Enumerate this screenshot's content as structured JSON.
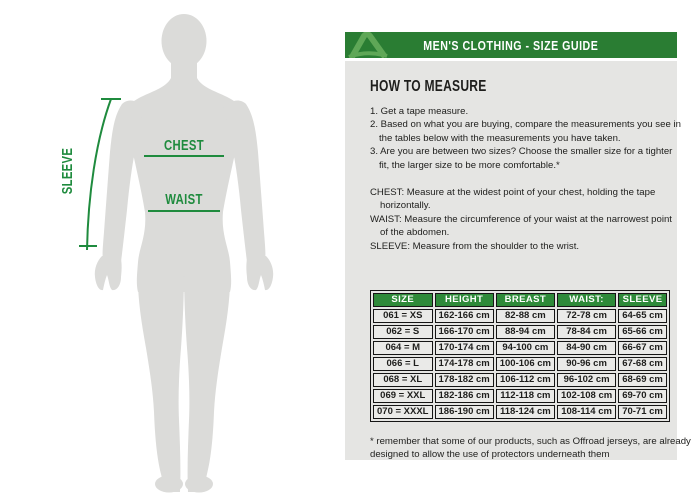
{
  "header": {
    "title": "MEN'S CLOTHING - SIZE GUIDE",
    "logo_icon": "acerbis-logo"
  },
  "diagram": {
    "chest_label": "CHEST",
    "waist_label": "WAIST",
    "sleeve_label": "SLEEVE"
  },
  "how_to": {
    "title": "HOW TO MEASURE",
    "steps": [
      {
        "lines": [
          "1. Get a tape measure."
        ]
      },
      {
        "lines": [
          "2. Based on what you are buying, compare the measurements you see in",
          "the tables below with the measurements you have taken."
        ]
      },
      {
        "lines": [
          "3. Are you are between two sizes? Choose the smaller size for a tighter",
          "fit, the larger size to be more comfortable.*"
        ]
      }
    ],
    "definitions": [
      {
        "lines": [
          "CHEST: Measure at the widest point of your chest, holding the tape",
          "horizontally."
        ]
      },
      {
        "lines": [
          "WAIST: Measure the circumference of your waist at the narrowest point",
          "of the abdomen."
        ]
      },
      {
        "lines": [
          "SLEEVE: Measure from the shoulder to the wrist."
        ]
      }
    ]
  },
  "size_table": {
    "columns": [
      "SIZE",
      "HEIGHT",
      "BREAST",
      "WAIST:",
      "SLEEVE"
    ],
    "rows": [
      [
        "061 = XS",
        "162-166 cm",
        "82-88 cm",
        "72-78 cm",
        "64-65 cm"
      ],
      [
        "062 = S",
        "166-170 cm",
        "88-94 cm",
        "78-84 cm",
        "65-66 cm"
      ],
      [
        "064 = M",
        "170-174 cm",
        "94-100 cm",
        "84-90 cm",
        "66-67 cm"
      ],
      [
        "066 = L",
        "174-178 cm",
        "100-106 cm",
        "90-96 cm",
        "67-68 cm"
      ],
      [
        "068 = XL",
        "178-182 cm",
        "106-112 cm",
        "96-102 cm",
        "68-69 cm"
      ],
      [
        "069 = XXL",
        "182-186 cm",
        "112-118 cm",
        "102-108 cm",
        "69-70 cm"
      ],
      [
        "070 = XXXL",
        "186-190 cm",
        "118-124 cm",
        "108-114 cm",
        "70-71 cm"
      ]
    ],
    "footnote_lines": [
      "* remember that some of our products, such as Offroad jerseys, are already",
      "designed to allow the use of protectors underneath them"
    ]
  },
  "colors": {
    "bar-green": "#2a7d33",
    "table-green": "#2e8a39",
    "accent-green": "#1f8b3e",
    "logo-green": "#5fa757",
    "panel-gray": "#e5e5e3",
    "cell-gray": "#eaeae8",
    "body-gray": "#dbdbd9",
    "text-dark": "#1e1e1c",
    "border-dark": "#151515"
  }
}
